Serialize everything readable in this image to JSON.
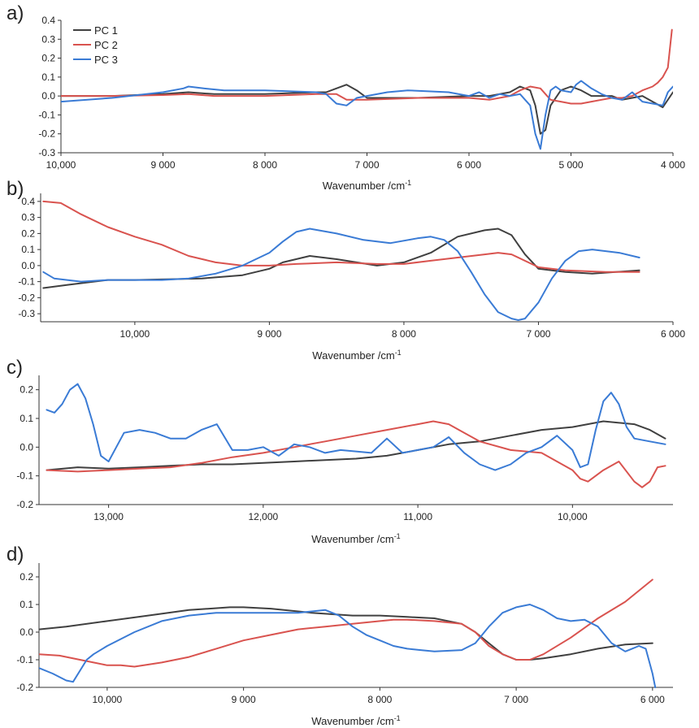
{
  "figure": {
    "colors": {
      "PC 1": "#404040",
      "PC 2": "#d9534f",
      "PC 3": "#3a7bd5"
    }
  },
  "chart_data": [
    {
      "panel": "a)",
      "type": "line",
      "xlabel": "Wavenumber /cm",
      "xlabel_sup": "-1",
      "xlim": [
        10000,
        4000
      ],
      "ylim": [
        -0.3,
        0.4
      ],
      "xticks": [
        10000,
        9000,
        8000,
        7000,
        6000,
        5000,
        4000
      ],
      "xtick_labels": [
        "10,000",
        "9 000",
        "8 000",
        "7 000",
        "6 000",
        "5 000",
        "4 000"
      ],
      "yticks": [
        -0.3,
        -0.2,
        -0.1,
        0.0,
        0.1,
        0.2,
        0.3,
        0.4
      ],
      "ytick_labels": [
        "-0.3",
        "-0.2",
        "-0.1",
        "0.0",
        "0.1",
        "0.2",
        "0.3",
        "0.4"
      ],
      "legend": {
        "position": "top-left",
        "entries": [
          "PC 1",
          "PC 2",
          "PC 3"
        ]
      },
      "series": [
        {
          "name": "PC 1",
          "x": [
            10000,
            9500,
            9000,
            8750,
            8500,
            8000,
            7500,
            7400,
            7300,
            7200,
            7100,
            7000,
            6500,
            6000,
            5800,
            5600,
            5500,
            5400,
            5350,
            5300,
            5250,
            5200,
            5100,
            5000,
            4900,
            4800,
            4700,
            4600,
            4500,
            4400,
            4300,
            4200,
            4100,
            4000
          ],
          "y": [
            0,
            0,
            0.01,
            0.02,
            0.01,
            0.01,
            0.02,
            0.02,
            0.04,
            0.06,
            0.03,
            -0.01,
            -0.01,
            0,
            0,
            0.02,
            0.05,
            0.03,
            -0.05,
            -0.2,
            -0.18,
            -0.05,
            0.03,
            0.05,
            0.03,
            0,
            0,
            0,
            -0.02,
            -0.01,
            0,
            -0.03,
            -0.06,
            0.02
          ]
        },
        {
          "name": "PC 2",
          "x": [
            10000,
            9500,
            9000,
            8750,
            8500,
            8000,
            7500,
            7300,
            7200,
            7000,
            6500,
            6000,
            5800,
            5600,
            5500,
            5400,
            5300,
            5200,
            5100,
            5000,
            4900,
            4800,
            4700,
            4600,
            4500,
            4400,
            4300,
            4200,
            4150,
            4100,
            4050,
            4030,
            4010
          ],
          "y": [
            0,
            0,
            0.005,
            0.01,
            0,
            0,
            0.01,
            0.01,
            -0.02,
            -0.02,
            -0.01,
            -0.01,
            -0.02,
            0,
            0.03,
            0.05,
            0.04,
            -0.02,
            -0.03,
            -0.04,
            -0.04,
            -0.03,
            -0.02,
            -0.01,
            -0.01,
            0,
            0.03,
            0.05,
            0.07,
            0.1,
            0.15,
            0.25,
            0.35
          ]
        },
        {
          "name": "PC 3",
          "x": [
            10000,
            9500,
            9000,
            8800,
            8750,
            8600,
            8400,
            8000,
            7500,
            7400,
            7300,
            7200,
            7100,
            7000,
            6800,
            6600,
            6200,
            6000,
            5900,
            5800,
            5700,
            5600,
            5500,
            5400,
            5350,
            5300,
            5250,
            5200,
            5150,
            5100,
            5000,
            4950,
            4900,
            4850,
            4800,
            4700,
            4600,
            4500,
            4400,
            4300,
            4200,
            4100,
            4050,
            4000
          ],
          "y": [
            -0.03,
            -0.01,
            0.02,
            0.04,
            0.05,
            0.04,
            0.03,
            0.03,
            0.02,
            0.01,
            -0.04,
            -0.05,
            -0.01,
            0,
            0.02,
            0.03,
            0.02,
            0,
            0.02,
            -0.01,
            0.01,
            0,
            0.01,
            -0.05,
            -0.2,
            -0.28,
            -0.1,
            0.03,
            0.05,
            0.03,
            0.02,
            0.06,
            0.08,
            0.06,
            0.04,
            0.01,
            -0.01,
            -0.02,
            0.02,
            -0.03,
            -0.04,
            -0.05,
            0.02,
            0.05
          ]
        }
      ]
    },
    {
      "panel": "b)",
      "type": "line",
      "xlabel": "Wavenumber /cm",
      "xlabel_sup": "-1",
      "xlim": [
        10700,
        6000
      ],
      "ylim": [
        -0.35,
        0.45
      ],
      "xticks": [
        10000,
        9000,
        8000,
        7000,
        6000
      ],
      "xtick_labels": [
        "10,000",
        "9 000",
        "8 000",
        "7 000",
        "6 000"
      ],
      "yticks": [
        -0.3,
        -0.2,
        -0.1,
        0.0,
        0.1,
        0.2,
        0.3,
        0.4
      ],
      "ytick_labels": [
        "-0.3",
        "-0.2",
        "-0.1",
        "0.0",
        "0.1",
        "0.2",
        "0.3",
        "0.4"
      ],
      "series": [
        {
          "name": "PC 1",
          "x": [
            10680,
            10500,
            10200,
            10000,
            9500,
            9200,
            9000,
            8900,
            8700,
            8500,
            8200,
            8000,
            7800,
            7600,
            7400,
            7300,
            7200,
            7100,
            7000,
            6800,
            6600,
            6250
          ],
          "y": [
            -0.14,
            -0.12,
            -0.09,
            -0.09,
            -0.08,
            -0.06,
            -0.02,
            0.02,
            0.06,
            0.04,
            0.0,
            0.02,
            0.08,
            0.18,
            0.22,
            0.23,
            0.19,
            0.07,
            -0.02,
            -0.04,
            -0.05,
            -0.03
          ]
        },
        {
          "name": "PC 2",
          "x": [
            10680,
            10550,
            10400,
            10200,
            10000,
            9800,
            9600,
            9400,
            9200,
            9000,
            8800,
            8500,
            8200,
            8000,
            7800,
            7600,
            7400,
            7300,
            7200,
            7000,
            6800,
            6500,
            6250
          ],
          "y": [
            0.4,
            0.39,
            0.32,
            0.24,
            0.18,
            0.13,
            0.06,
            0.02,
            0,
            0,
            0.01,
            0.02,
            0.01,
            0.01,
            0.03,
            0.05,
            0.07,
            0.08,
            0.07,
            -0.01,
            -0.03,
            -0.04,
            -0.04
          ]
        },
        {
          "name": "PC 3",
          "x": [
            10680,
            10600,
            10400,
            10200,
            10000,
            9800,
            9600,
            9400,
            9200,
            9000,
            8900,
            8800,
            8700,
            8500,
            8300,
            8100,
            7900,
            7800,
            7700,
            7600,
            7500,
            7400,
            7300,
            7200,
            7150,
            7100,
            7000,
            6900,
            6800,
            6700,
            6600,
            6400,
            6250
          ],
          "y": [
            -0.04,
            -0.08,
            -0.1,
            -0.09,
            -0.09,
            -0.09,
            -0.08,
            -0.05,
            0.0,
            0.08,
            0.15,
            0.21,
            0.23,
            0.2,
            0.16,
            0.14,
            0.17,
            0.18,
            0.16,
            0.09,
            -0.04,
            -0.18,
            -0.29,
            -0.33,
            -0.34,
            -0.33,
            -0.23,
            -0.08,
            0.03,
            0.09,
            0.1,
            0.08,
            0.05
          ]
        }
      ]
    },
    {
      "panel": "c)",
      "type": "line",
      "xlabel": "Wavenumber /cm",
      "xlabel_sup": "-1",
      "xlim": [
        13450,
        9350
      ],
      "ylim": [
        -0.2,
        0.25
      ],
      "xticks": [
        13000,
        12000,
        11000,
        10000
      ],
      "xtick_labels": [
        "13,000",
        "12,000",
        "11,000",
        "10,000"
      ],
      "yticks": [
        -0.2,
        -0.1,
        0.0,
        0.1,
        0.2
      ],
      "ytick_labels": [
        "-0.2",
        "-0.1",
        "0.0",
        "0.1",
        "0.2"
      ],
      "series": [
        {
          "name": "PC 1",
          "x": [
            13400,
            13200,
            13000,
            12800,
            12600,
            12400,
            12200,
            12000,
            11800,
            11600,
            11400,
            11200,
            11000,
            10800,
            10600,
            10400,
            10200,
            10000,
            9800,
            9600,
            9500,
            9400
          ],
          "y": [
            -0.08,
            -0.07,
            -0.075,
            -0.07,
            -0.065,
            -0.06,
            -0.06,
            -0.055,
            -0.05,
            -0.045,
            -0.04,
            -0.03,
            -0.01,
            0.01,
            0.02,
            0.04,
            0.06,
            0.07,
            0.09,
            0.08,
            0.06,
            0.03
          ]
        },
        {
          "name": "PC 2",
          "x": [
            13400,
            13200,
            13000,
            12800,
            12600,
            12400,
            12200,
            12000,
            11800,
            11600,
            11400,
            11200,
            11000,
            10900,
            10800,
            10700,
            10600,
            10400,
            10200,
            10100,
            10000,
            9950,
            9900,
            9800,
            9700,
            9600,
            9550,
            9500,
            9450,
            9400
          ],
          "y": [
            -0.08,
            -0.085,
            -0.08,
            -0.075,
            -0.07,
            -0.055,
            -0.035,
            -0.02,
            0,
            0.02,
            0.04,
            0.06,
            0.08,
            0.09,
            0.08,
            0.05,
            0.02,
            -0.01,
            -0.02,
            -0.05,
            -0.08,
            -0.11,
            -0.12,
            -0.08,
            -0.05,
            -0.12,
            -0.14,
            -0.12,
            -0.07,
            -0.065
          ]
        },
        {
          "name": "PC 3",
          "x": [
            13400,
            13350,
            13300,
            13250,
            13200,
            13150,
            13100,
            13050,
            13000,
            12950,
            12900,
            12800,
            12700,
            12600,
            12500,
            12400,
            12300,
            12200,
            12100,
            12000,
            11900,
            11800,
            11700,
            11600,
            11500,
            11400,
            11300,
            11200,
            11100,
            11000,
            10900,
            10800,
            10700,
            10600,
            10500,
            10400,
            10300,
            10200,
            10100,
            10000,
            9950,
            9900,
            9850,
            9800,
            9750,
            9700,
            9650,
            9600,
            9500,
            9400
          ],
          "y": [
            0.13,
            0.12,
            0.15,
            0.2,
            0.22,
            0.17,
            0.08,
            -0.03,
            -0.05,
            0.0,
            0.05,
            0.06,
            0.05,
            0.03,
            0.03,
            0.06,
            0.08,
            -0.01,
            -0.01,
            0.0,
            -0.03,
            0.01,
            0.0,
            -0.02,
            -0.01,
            -0.015,
            -0.02,
            0.03,
            -0.02,
            -0.01,
            0.0,
            0.035,
            -0.02,
            -0.06,
            -0.08,
            -0.06,
            -0.02,
            0.0,
            0.04,
            -0.01,
            -0.07,
            -0.06,
            0.06,
            0.16,
            0.19,
            0.15,
            0.07,
            0.03,
            0.02,
            0.01
          ]
        }
      ]
    },
    {
      "panel": "d)",
      "type": "line",
      "xlabel": "Wavenumber /cm",
      "xlabel_sup": "-1",
      "xlim": [
        10500,
        5850
      ],
      "ylim": [
        -0.2,
        0.25
      ],
      "xticks": [
        10000,
        9000,
        8000,
        7000,
        6000
      ],
      "xtick_labels": [
        "10,000",
        "9 000",
        "8 000",
        "7 000",
        "6 000"
      ],
      "yticks": [
        -0.2,
        -0.1,
        0.0,
        0.1,
        0.2
      ],
      "ytick_labels": [
        "-0.2",
        "-0.1",
        "0.0",
        "0.1",
        "0.2"
      ],
      "series": [
        {
          "name": "PC 1",
          "x": [
            10500,
            10300,
            10000,
            9700,
            9400,
            9100,
            9000,
            8800,
            8500,
            8200,
            8000,
            7800,
            7600,
            7400,
            7300,
            7200,
            7100,
            7000,
            6900,
            6800,
            6600,
            6400,
            6200,
            6000
          ],
          "y": [
            0.01,
            0.02,
            0.04,
            0.06,
            0.08,
            0.09,
            0.09,
            0.085,
            0.07,
            0.06,
            0.06,
            0.055,
            0.05,
            0.03,
            0.0,
            -0.04,
            -0.08,
            -0.1,
            -0.1,
            -0.095,
            -0.08,
            -0.06,
            -0.045,
            -0.04
          ]
        },
        {
          "name": "PC 2",
          "x": [
            10500,
            10350,
            10200,
            10100,
            10000,
            9900,
            9800,
            9600,
            9400,
            9200,
            9000,
            8800,
            8600,
            8400,
            8200,
            8000,
            7900,
            7800,
            7600,
            7400,
            7300,
            7200,
            7100,
            7000,
            6900,
            6800,
            6600,
            6400,
            6200,
            6000
          ],
          "y": [
            -0.08,
            -0.085,
            -0.1,
            -0.11,
            -0.12,
            -0.12,
            -0.125,
            -0.11,
            -0.09,
            -0.06,
            -0.03,
            -0.01,
            0.01,
            0.02,
            0.03,
            0.04,
            0.045,
            0.045,
            0.04,
            0.03,
            0.0,
            -0.05,
            -0.08,
            -0.1,
            -0.1,
            -0.08,
            -0.02,
            0.05,
            0.11,
            0.19
          ]
        },
        {
          "name": "PC 3",
          "x": [
            10500,
            10400,
            10300,
            10250,
            10200,
            10150,
            10100,
            10000,
            9800,
            9600,
            9400,
            9200,
            9000,
            8800,
            8600,
            8400,
            8300,
            8200,
            8100,
            8000,
            7900,
            7800,
            7700,
            7600,
            7400,
            7300,
            7200,
            7100,
            7000,
            6900,
            6800,
            6700,
            6600,
            6500,
            6400,
            6300,
            6200,
            6150,
            6100,
            6050,
            6000,
            5980
          ],
          "y": [
            -0.13,
            -0.15,
            -0.175,
            -0.18,
            -0.14,
            -0.1,
            -0.08,
            -0.05,
            0.0,
            0.04,
            0.06,
            0.07,
            0.07,
            0.07,
            0.07,
            0.08,
            0.06,
            0.02,
            -0.01,
            -0.03,
            -0.05,
            -0.06,
            -0.065,
            -0.07,
            -0.065,
            -0.04,
            0.02,
            0.07,
            0.09,
            0.1,
            0.08,
            0.05,
            0.04,
            0.045,
            0.02,
            -0.04,
            -0.07,
            -0.06,
            -0.05,
            -0.06,
            -0.15,
            -0.2
          ]
        }
      ]
    }
  ]
}
